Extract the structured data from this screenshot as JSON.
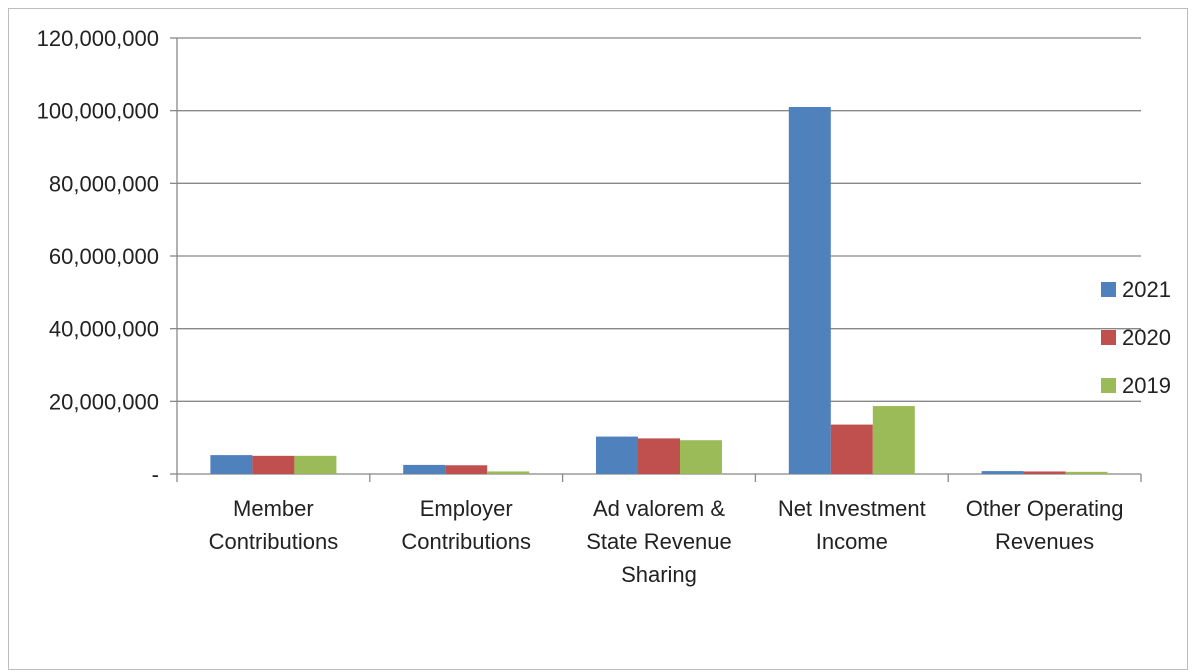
{
  "chart_data": {
    "type": "bar",
    "title": "",
    "xlabel": "",
    "ylabel": "",
    "categories": [
      "Member Contributions",
      "Employer Contributions",
      "Ad valorem & State Revenue Sharing",
      "Net Investment Income",
      "Other Operating Revenues"
    ],
    "category_lines": [
      [
        "Member",
        "Contributions"
      ],
      [
        "Employer",
        "Contributions"
      ],
      [
        "Ad valorem &",
        "State Revenue",
        "Sharing"
      ],
      [
        "Net Investment",
        "Income"
      ],
      [
        "Other Operating",
        "Revenues"
      ]
    ],
    "series": [
      {
        "name": "2021",
        "color": "#4f81bd",
        "values": [
          5200000,
          2500000,
          10300000,
          101000000,
          800000
        ]
      },
      {
        "name": "2020",
        "color": "#c0504d",
        "values": [
          5000000,
          2400000,
          9800000,
          13600000,
          700000
        ]
      },
      {
        "name": "2019",
        "color": "#9bbb59",
        "values": [
          5000000,
          700000,
          9300000,
          18700000,
          600000
        ]
      }
    ],
    "ylim": [
      0,
      120000000
    ],
    "yticks": [
      0,
      20000000,
      40000000,
      60000000,
      80000000,
      100000000,
      120000000
    ],
    "ytick_labels": [
      "-",
      "20,000,000",
      "40,000,000",
      "60,000,000",
      "80,000,000",
      "100,000,000",
      "120,000,000"
    ],
    "grid": true,
    "legend_position": "right"
  }
}
